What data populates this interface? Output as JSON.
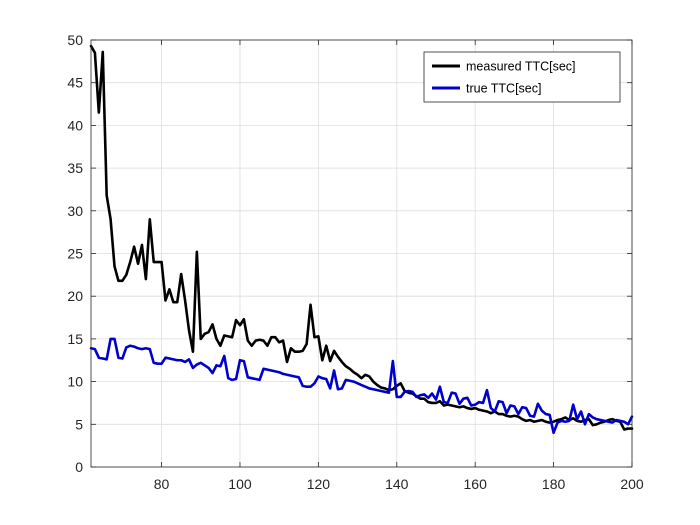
{
  "chart_data": {
    "type": "line",
    "title": "",
    "xlabel": "",
    "ylabel": "",
    "xlim": [
      62,
      200
    ],
    "ylim": [
      0,
      50
    ],
    "x_ticks": [
      80,
      100,
      120,
      140,
      160,
      180,
      200
    ],
    "y_ticks": [
      0,
      5,
      10,
      15,
      20,
      25,
      30,
      35,
      40,
      45,
      50
    ],
    "grid": true,
    "legend_position": "top-right",
    "series": [
      {
        "name": "measured TTC[sec]",
        "color": "#000000",
        "points": [
          [
            62,
            49.3
          ],
          [
            63,
            48.5
          ],
          [
            64,
            41.5
          ],
          [
            65,
            48.6
          ],
          [
            66,
            31.8
          ],
          [
            67,
            29.0
          ],
          [
            68,
            23.5
          ],
          [
            69,
            21.8
          ],
          [
            70,
            21.8
          ],
          [
            71,
            22.5
          ],
          [
            72,
            24.0
          ],
          [
            73,
            25.8
          ],
          [
            74,
            23.8
          ],
          [
            75,
            26.0
          ],
          [
            76,
            22.0
          ],
          [
            77,
            29.0
          ],
          [
            78,
            24.0
          ],
          [
            79,
            24.0
          ],
          [
            80,
            24.0
          ],
          [
            81,
            19.5
          ],
          [
            82,
            20.8
          ],
          [
            83,
            19.3
          ],
          [
            84,
            19.3
          ],
          [
            85,
            22.6
          ],
          [
            86,
            19.5
          ],
          [
            87,
            16.0
          ],
          [
            88,
            13.5
          ],
          [
            89,
            25.2
          ],
          [
            90,
            15.0
          ],
          [
            91,
            15.6
          ],
          [
            92,
            15.8
          ],
          [
            93,
            16.7
          ],
          [
            94,
            15.0
          ],
          [
            95,
            14.2
          ],
          [
            96,
            15.4
          ],
          [
            97,
            15.3
          ],
          [
            98,
            15.2
          ],
          [
            99,
            17.2
          ],
          [
            100,
            16.6
          ],
          [
            101,
            17.3
          ],
          [
            102,
            14.8
          ],
          [
            103,
            14.2
          ],
          [
            104,
            14.8
          ],
          [
            105,
            14.9
          ],
          [
            106,
            14.8
          ],
          [
            107,
            14.2
          ],
          [
            108,
            15.2
          ],
          [
            109,
            15.2
          ],
          [
            110,
            14.6
          ],
          [
            111,
            14.8
          ],
          [
            112,
            12.3
          ],
          [
            113,
            13.9
          ],
          [
            114,
            13.5
          ],
          [
            115,
            13.5
          ],
          [
            116,
            13.6
          ],
          [
            117,
            14.4
          ],
          [
            118,
            19.0
          ],
          [
            119,
            15.2
          ],
          [
            120,
            15.3
          ],
          [
            121,
            12.5
          ],
          [
            122,
            14.2
          ],
          [
            123,
            12.4
          ],
          [
            124,
            13.6
          ],
          [
            125,
            12.9
          ],
          [
            126,
            12.3
          ],
          [
            127,
            11.8
          ],
          [
            128,
            11.5
          ],
          [
            129,
            11.1
          ],
          [
            130,
            10.8
          ],
          [
            131,
            10.4
          ],
          [
            132,
            10.8
          ],
          [
            133,
            10.6
          ],
          [
            134,
            10.0
          ],
          [
            135,
            9.6
          ],
          [
            136,
            9.3
          ],
          [
            137,
            9.2
          ],
          [
            138,
            9.0
          ],
          [
            139,
            9.1
          ],
          [
            140,
            9.5
          ],
          [
            141,
            9.8
          ],
          [
            142,
            8.9
          ],
          [
            143,
            8.7
          ],
          [
            144,
            8.6
          ],
          [
            145,
            8.3
          ],
          [
            146,
            8.0
          ],
          [
            147,
            8.0
          ],
          [
            148,
            7.6
          ],
          [
            149,
            7.5
          ],
          [
            150,
            7.5
          ],
          [
            151,
            7.7
          ],
          [
            152,
            7.2
          ],
          [
            153,
            7.3
          ],
          [
            154,
            7.2
          ],
          [
            155,
            7.1
          ],
          [
            156,
            7.0
          ],
          [
            157,
            7.1
          ],
          [
            158,
            6.9
          ],
          [
            159,
            6.8
          ],
          [
            160,
            6.9
          ],
          [
            161,
            6.7
          ],
          [
            162,
            6.6
          ],
          [
            163,
            6.5
          ],
          [
            164,
            6.3
          ],
          [
            165,
            6.5
          ],
          [
            166,
            6.2
          ],
          [
            167,
            6.2
          ],
          [
            168,
            6.0
          ],
          [
            169,
            5.9
          ],
          [
            170,
            6.0
          ],
          [
            171,
            5.9
          ],
          [
            172,
            5.6
          ],
          [
            173,
            5.4
          ],
          [
            174,
            5.5
          ],
          [
            175,
            5.3
          ],
          [
            176,
            5.4
          ],
          [
            177,
            5.5
          ],
          [
            178,
            5.3
          ],
          [
            179,
            5.2
          ],
          [
            180,
            5.3
          ],
          [
            181,
            5.5
          ],
          [
            182,
            5.6
          ],
          [
            183,
            5.8
          ],
          [
            184,
            5.5
          ],
          [
            185,
            5.7
          ],
          [
            186,
            5.4
          ],
          [
            187,
            5.3
          ],
          [
            188,
            5.5
          ],
          [
            189,
            5.6
          ],
          [
            190,
            4.9
          ],
          [
            191,
            5.0
          ],
          [
            192,
            5.2
          ],
          [
            193,
            5.3
          ],
          [
            194,
            5.5
          ],
          [
            195,
            5.6
          ],
          [
            196,
            5.4
          ],
          [
            197,
            5.3
          ],
          [
            198,
            4.4
          ],
          [
            199,
            4.5
          ],
          [
            200,
            4.5
          ]
        ]
      },
      {
        "name": "true TTC[sec]",
        "color": "#0000cc",
        "points": [
          [
            62,
            13.9
          ],
          [
            63,
            13.8
          ],
          [
            64,
            12.8
          ],
          [
            65,
            12.7
          ],
          [
            66,
            12.6
          ],
          [
            67,
            15.0
          ],
          [
            68,
            15.0
          ],
          [
            69,
            12.8
          ],
          [
            70,
            12.7
          ],
          [
            71,
            14.0
          ],
          [
            72,
            14.2
          ],
          [
            73,
            14.1
          ],
          [
            74,
            13.9
          ],
          [
            75,
            13.8
          ],
          [
            76,
            13.9
          ],
          [
            77,
            13.8
          ],
          [
            78,
            12.2
          ],
          [
            79,
            12.1
          ],
          [
            80,
            12.1
          ],
          [
            81,
            12.8
          ],
          [
            82,
            12.7
          ],
          [
            83,
            12.6
          ],
          [
            84,
            12.5
          ],
          [
            85,
            12.5
          ],
          [
            86,
            12.3
          ],
          [
            87,
            12.6
          ],
          [
            88,
            11.6
          ],
          [
            89,
            12.0
          ],
          [
            90,
            12.2
          ],
          [
            91,
            11.9
          ],
          [
            92,
            11.6
          ],
          [
            93,
            11.0
          ],
          [
            94,
            11.9
          ],
          [
            95,
            11.8
          ],
          [
            96,
            13.0
          ],
          [
            97,
            10.4
          ],
          [
            98,
            10.2
          ],
          [
            99,
            10.3
          ],
          [
            100,
            12.5
          ],
          [
            101,
            12.4
          ],
          [
            102,
            10.5
          ],
          [
            103,
            10.4
          ],
          [
            104,
            10.3
          ],
          [
            105,
            10.2
          ],
          [
            106,
            11.5
          ],
          [
            107,
            11.4
          ],
          [
            108,
            11.3
          ],
          [
            109,
            11.2
          ],
          [
            110,
            11.1
          ],
          [
            111,
            10.9
          ],
          [
            112,
            10.8
          ],
          [
            113,
            10.7
          ],
          [
            114,
            10.6
          ],
          [
            115,
            10.5
          ],
          [
            116,
            9.5
          ],
          [
            117,
            9.4
          ],
          [
            118,
            9.4
          ],
          [
            119,
            9.8
          ],
          [
            120,
            10.6
          ],
          [
            121,
            10.4
          ],
          [
            122,
            10.3
          ],
          [
            123,
            9.2
          ],
          [
            124,
            11.3
          ],
          [
            125,
            9.1
          ],
          [
            126,
            9.2
          ],
          [
            127,
            10.2
          ],
          [
            128,
            10.1
          ],
          [
            129,
            10.0
          ],
          [
            130,
            9.8
          ],
          [
            131,
            9.6
          ],
          [
            132,
            9.4
          ],
          [
            133,
            9.2
          ],
          [
            134,
            9.1
          ],
          [
            135,
            9.0
          ],
          [
            136,
            8.9
          ],
          [
            137,
            8.8
          ],
          [
            138,
            8.7
          ],
          [
            139,
            12.4
          ],
          [
            140,
            8.2
          ],
          [
            141,
            8.2
          ],
          [
            142,
            8.8
          ],
          [
            143,
            8.9
          ],
          [
            144,
            8.8
          ],
          [
            145,
            8.2
          ],
          [
            146,
            8.4
          ],
          [
            147,
            8.5
          ],
          [
            148,
            8.1
          ],
          [
            149,
            8.6
          ],
          [
            150,
            7.9
          ],
          [
            151,
            9.4
          ],
          [
            152,
            7.6
          ],
          [
            153,
            7.5
          ],
          [
            154,
            8.7
          ],
          [
            155,
            8.6
          ],
          [
            156,
            7.4
          ],
          [
            157,
            8.0
          ],
          [
            158,
            8.1
          ],
          [
            159,
            7.2
          ],
          [
            160,
            7.3
          ],
          [
            161,
            7.6
          ],
          [
            162,
            7.5
          ],
          [
            163,
            9.0
          ],
          [
            164,
            6.9
          ],
          [
            165,
            6.5
          ],
          [
            166,
            7.7
          ],
          [
            167,
            7.6
          ],
          [
            168,
            6.3
          ],
          [
            169,
            7.2
          ],
          [
            170,
            7.1
          ],
          [
            171,
            6.2
          ],
          [
            172,
            7.0
          ],
          [
            173,
            6.9
          ],
          [
            174,
            6.0
          ],
          [
            175,
            5.9
          ],
          [
            176,
            7.4
          ],
          [
            177,
            6.6
          ],
          [
            178,
            6.2
          ],
          [
            179,
            6.1
          ],
          [
            180,
            4.0
          ],
          [
            181,
            5.2
          ],
          [
            182,
            5.4
          ],
          [
            183,
            5.3
          ],
          [
            184,
            5.4
          ],
          [
            185,
            7.3
          ],
          [
            186,
            5.6
          ],
          [
            187,
            6.5
          ],
          [
            188,
            5.0
          ],
          [
            189,
            6.2
          ],
          [
            190,
            5.8
          ],
          [
            191,
            5.6
          ],
          [
            192,
            5.5
          ],
          [
            193,
            5.4
          ],
          [
            194,
            5.3
          ],
          [
            195,
            5.2
          ],
          [
            196,
            5.5
          ],
          [
            197,
            5.4
          ],
          [
            198,
            5.3
          ],
          [
            199,
            5.0
          ],
          [
            200,
            5.9
          ]
        ]
      }
    ]
  }
}
